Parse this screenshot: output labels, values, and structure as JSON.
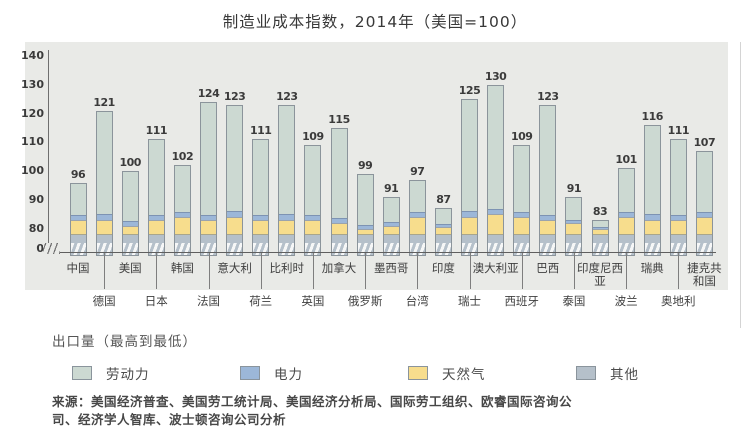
{
  "title": "制造业成本指数，2014年（美国=100）",
  "chart_data": {
    "type": "bar",
    "stacked": true,
    "title": "制造业成本指数，2014年（美国=100）",
    "x_order_note": "出口量（最高到最低）",
    "y_ticks": [
      0,
      80,
      90,
      100,
      110,
      120,
      130,
      140
    ],
    "ylim": [
      0,
      140
    ],
    "visible_range_above_break": [
      75,
      140
    ],
    "axis_break": true,
    "grid": false,
    "legend_position": "bottom",
    "categories": [
      "中国",
      "德国",
      "美国",
      "日本",
      "韩国",
      "法国",
      "意大利",
      "荷兰",
      "比利时",
      "英国",
      "加拿大",
      "俄罗斯",
      "墨西哥",
      "台湾",
      "印度",
      "瑞士",
      "澳大利亚",
      "西班牙",
      "巴西",
      "泰国",
      "印度尼西亚",
      "波兰",
      "瑞典",
      "奥地利",
      "捷克共和国"
    ],
    "totals": [
      96,
      121,
      100,
      111,
      102,
      124,
      123,
      111,
      123,
      109,
      115,
      99,
      91,
      97,
      87,
      125,
      130,
      109,
      123,
      91,
      83,
      101,
      116,
      111,
      107
    ],
    "series": [
      {
        "name": "劳动力",
        "color": "#ccd9d2",
        "values_approx": [
          11,
          35.5,
          17,
          26,
          16,
          39,
          36.5,
          26,
          37.5,
          24,
          31,
          17.5,
          8.5,
          11,
          5,
          38.5,
          43,
          23,
          38,
          7.5,
          2,
          15,
          30.5,
          26,
          21
        ]
      },
      {
        "name": "电力",
        "color": "#9cb7d8",
        "values_approx": [
          2,
          2.5,
          2,
          2,
          2,
          2,
          2.5,
          2,
          2.5,
          2,
          2,
          1.5,
          1.5,
          2,
          1.5,
          2.5,
          2,
          2,
          2,
          1.5,
          1,
          2,
          2.5,
          2,
          2
        ]
      },
      {
        "name": "天然气",
        "color": "#f7dd8d",
        "values_approx": [
          5,
          5,
          3,
          5,
          6,
          5,
          6,
          5,
          5,
          5,
          4,
          2,
          3,
          6,
          2.5,
          6,
          7,
          6,
          5,
          4,
          2,
          6,
          5,
          5,
          6
        ]
      },
      {
        "name": "其他",
        "color": "#b5c0ca",
        "values_approx": [
          78,
          78,
          78,
          78,
          78,
          78,
          78,
          78,
          78,
          78,
          78,
          78,
          78,
          78,
          78,
          78,
          78,
          78,
          78,
          78,
          78,
          78,
          78,
          78,
          78
        ]
      }
    ]
  },
  "legend": {
    "title": "出口量（最高到最低）",
    "items": [
      {
        "label": "劳动力",
        "color": "#ccd9d2"
      },
      {
        "label": "电力",
        "color": "#9cb7d8"
      },
      {
        "label": "天然气",
        "color": "#f7dd8d"
      },
      {
        "label": "其他",
        "color": "#b5c0ca"
      }
    ]
  },
  "source": {
    "lines": [
      "来源：美国经济普查、美国劳工统计局、美国经济分析局、国际劳工组织、欧睿国际咨询公",
      "司、经济学人智库、波士顿咨询公司分析"
    ]
  }
}
